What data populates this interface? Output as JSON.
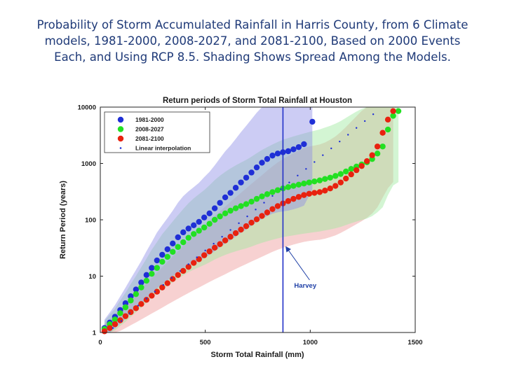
{
  "slide": {
    "title_lines": [
      "Probability of Storm Accumulated Rainfall in Harris County, from 6 Climate",
      "models, 1981-2000, 2008-2027, and 2081-2100, Based on 2000 Events",
      "Each, and Using RCP 8.5. Shading Shows Spread Among the Models."
    ]
  },
  "chart_data": {
    "type": "scatter",
    "title": "Return periods of Storm Total Rainfall at Houston",
    "xlabel": "Storm Total Rainfall (mm)",
    "ylabel": "Return Period (years)",
    "xlim": [
      0,
      1500
    ],
    "ylim": [
      1,
      10000
    ],
    "yscale": "log",
    "x_ticks": [
      "0",
      "500",
      "1000",
      "1500"
    ],
    "y_ticks": [
      "1",
      "10",
      "100",
      "1000",
      "10000"
    ],
    "grid": false,
    "legend_position": "top-left",
    "series": [
      {
        "name": "1981-2000",
        "color": "#1f2fd6",
        "band_color": "#8f8fe6",
        "points": [
          [
            20,
            1.2
          ],
          [
            45,
            1.5
          ],
          [
            70,
            1.9
          ],
          [
            95,
            2.5
          ],
          [
            120,
            3.3
          ],
          [
            145,
            4.4
          ],
          [
            170,
            5.8
          ],
          [
            195,
            7.7
          ],
          [
            220,
            10.5
          ],
          [
            245,
            14
          ],
          [
            270,
            19
          ],
          [
            295,
            24
          ],
          [
            320,
            30
          ],
          [
            345,
            38
          ],
          [
            370,
            49
          ],
          [
            395,
            60
          ],
          [
            420,
            70
          ],
          [
            445,
            80
          ],
          [
            470,
            92
          ],
          [
            495,
            110
          ],
          [
            520,
            130
          ],
          [
            545,
            160
          ],
          [
            570,
            200
          ],
          [
            595,
            250
          ],
          [
            620,
            300
          ],
          [
            645,
            370
          ],
          [
            670,
            460
          ],
          [
            695,
            560
          ],
          [
            720,
            690
          ],
          [
            745,
            850
          ],
          [
            770,
            1030
          ],
          [
            795,
            1200
          ],
          [
            820,
            1380
          ],
          [
            845,
            1500
          ],
          [
            870,
            1580
          ],
          [
            895,
            1650
          ],
          [
            920,
            1780
          ],
          [
            945,
            1950
          ],
          [
            970,
            2200
          ],
          [
            1010,
            5500
          ]
        ]
      },
      {
        "name": "2008-2027",
        "color": "#22e022",
        "band_color": "#9ee89e",
        "points": [
          [
            20,
            1.15
          ],
          [
            45,
            1.4
          ],
          [
            70,
            1.7
          ],
          [
            95,
            2.2
          ],
          [
            120,
            2.8
          ],
          [
            145,
            3.7
          ],
          [
            170,
            4.8
          ],
          [
            195,
            6.3
          ],
          [
            220,
            8.3
          ],
          [
            245,
            11
          ],
          [
            270,
            14
          ],
          [
            295,
            18
          ],
          [
            320,
            22
          ],
          [
            345,
            27
          ],
          [
            370,
            33
          ],
          [
            395,
            40
          ],
          [
            420,
            48
          ],
          [
            445,
            56
          ],
          [
            470,
            64
          ],
          [
            495,
            73
          ],
          [
            520,
            85
          ],
          [
            545,
            100
          ],
          [
            570,
            115
          ],
          [
            595,
            130
          ],
          [
            620,
            145
          ],
          [
            645,
            160
          ],
          [
            670,
            175
          ],
          [
            695,
            190
          ],
          [
            720,
            210
          ],
          [
            745,
            235
          ],
          [
            770,
            260
          ],
          [
            795,
            285
          ],
          [
            820,
            310
          ],
          [
            845,
            335
          ],
          [
            870,
            360
          ],
          [
            895,
            380
          ],
          [
            920,
            400
          ],
          [
            945,
            420
          ],
          [
            970,
            440
          ],
          [
            995,
            460
          ],
          [
            1020,
            480
          ],
          [
            1045,
            500
          ],
          [
            1070,
            530
          ],
          [
            1095,
            560
          ],
          [
            1120,
            600
          ],
          [
            1145,
            650
          ],
          [
            1170,
            720
          ],
          [
            1195,
            800
          ],
          [
            1220,
            880
          ],
          [
            1245,
            960
          ],
          [
            1270,
            1050
          ],
          [
            1295,
            1200
          ],
          [
            1320,
            1500
          ],
          [
            1345,
            2000
          ],
          [
            1370,
            4000
          ],
          [
            1395,
            7000
          ],
          [
            1420,
            8500
          ]
        ]
      },
      {
        "name": "2081-2100",
        "color": "#e8220f",
        "band_color": "#ee9a9a",
        "points": [
          [
            20,
            1.05
          ],
          [
            45,
            1.2
          ],
          [
            70,
            1.4
          ],
          [
            95,
            1.65
          ],
          [
            120,
            1.95
          ],
          [
            145,
            2.3
          ],
          [
            170,
            2.7
          ],
          [
            195,
            3.2
          ],
          [
            220,
            3.8
          ],
          [
            245,
            4.5
          ],
          [
            270,
            5.3
          ],
          [
            295,
            6.3
          ],
          [
            320,
            7.5
          ],
          [
            345,
            8.9
          ],
          [
            370,
            10.5
          ],
          [
            395,
            12.4
          ],
          [
            420,
            14.6
          ],
          [
            445,
            17.2
          ],
          [
            470,
            20
          ],
          [
            495,
            23.5
          ],
          [
            520,
            27.5
          ],
          [
            545,
            32
          ],
          [
            570,
            37
          ],
          [
            595,
            43
          ],
          [
            620,
            50
          ],
          [
            645,
            58
          ],
          [
            670,
            67
          ],
          [
            695,
            77
          ],
          [
            720,
            89
          ],
          [
            745,
            102
          ],
          [
            770,
            117
          ],
          [
            795,
            135
          ],
          [
            820,
            155
          ],
          [
            845,
            175
          ],
          [
            870,
            195
          ],
          [
            895,
            215
          ],
          [
            920,
            235
          ],
          [
            945,
            255
          ],
          [
            970,
            275
          ],
          [
            995,
            290
          ],
          [
            1020,
            300
          ],
          [
            1045,
            310
          ],
          [
            1070,
            330
          ],
          [
            1095,
            360
          ],
          [
            1120,
            400
          ],
          [
            1145,
            460
          ],
          [
            1170,
            540
          ],
          [
            1195,
            640
          ],
          [
            1220,
            760
          ],
          [
            1245,
            900
          ],
          [
            1270,
            1100
          ],
          [
            1295,
            1400
          ],
          [
            1320,
            2000
          ],
          [
            1345,
            3500
          ],
          [
            1370,
            6000
          ],
          [
            1395,
            8500
          ]
        ]
      },
      {
        "name": "Linear interpolation",
        "color": "#1f2fd6",
        "marker": "dot",
        "points": [
          [
            60,
            1.2
          ],
          [
            100,
            1.6
          ],
          [
            140,
            2.2
          ],
          [
            180,
            3
          ],
          [
            220,
            4
          ],
          [
            260,
            5.3
          ],
          [
            300,
            7
          ],
          [
            340,
            9.3
          ],
          [
            380,
            12.3
          ],
          [
            420,
            16.3
          ],
          [
            460,
            21.6
          ],
          [
            500,
            28.5
          ],
          [
            540,
            37.7
          ],
          [
            580,
            50
          ],
          [
            620,
            66
          ],
          [
            660,
            87
          ],
          [
            700,
            115
          ],
          [
            740,
            152
          ],
          [
            780,
            201
          ],
          [
            820,
            265
          ],
          [
            860,
            350
          ],
          [
            900,
            460
          ],
          [
            940,
            610
          ],
          [
            980,
            800
          ],
          [
            1020,
            1060
          ],
          [
            1060,
            1400
          ],
          [
            1100,
            1850
          ],
          [
            1140,
            2450
          ],
          [
            1180,
            3230
          ],
          [
            1220,
            4270
          ],
          [
            1260,
            5650
          ],
          [
            1300,
            7470
          ]
        ]
      }
    ],
    "annotations": [
      {
        "text": "Harvey",
        "x": 870,
        "type": "vertical-line"
      }
    ]
  }
}
